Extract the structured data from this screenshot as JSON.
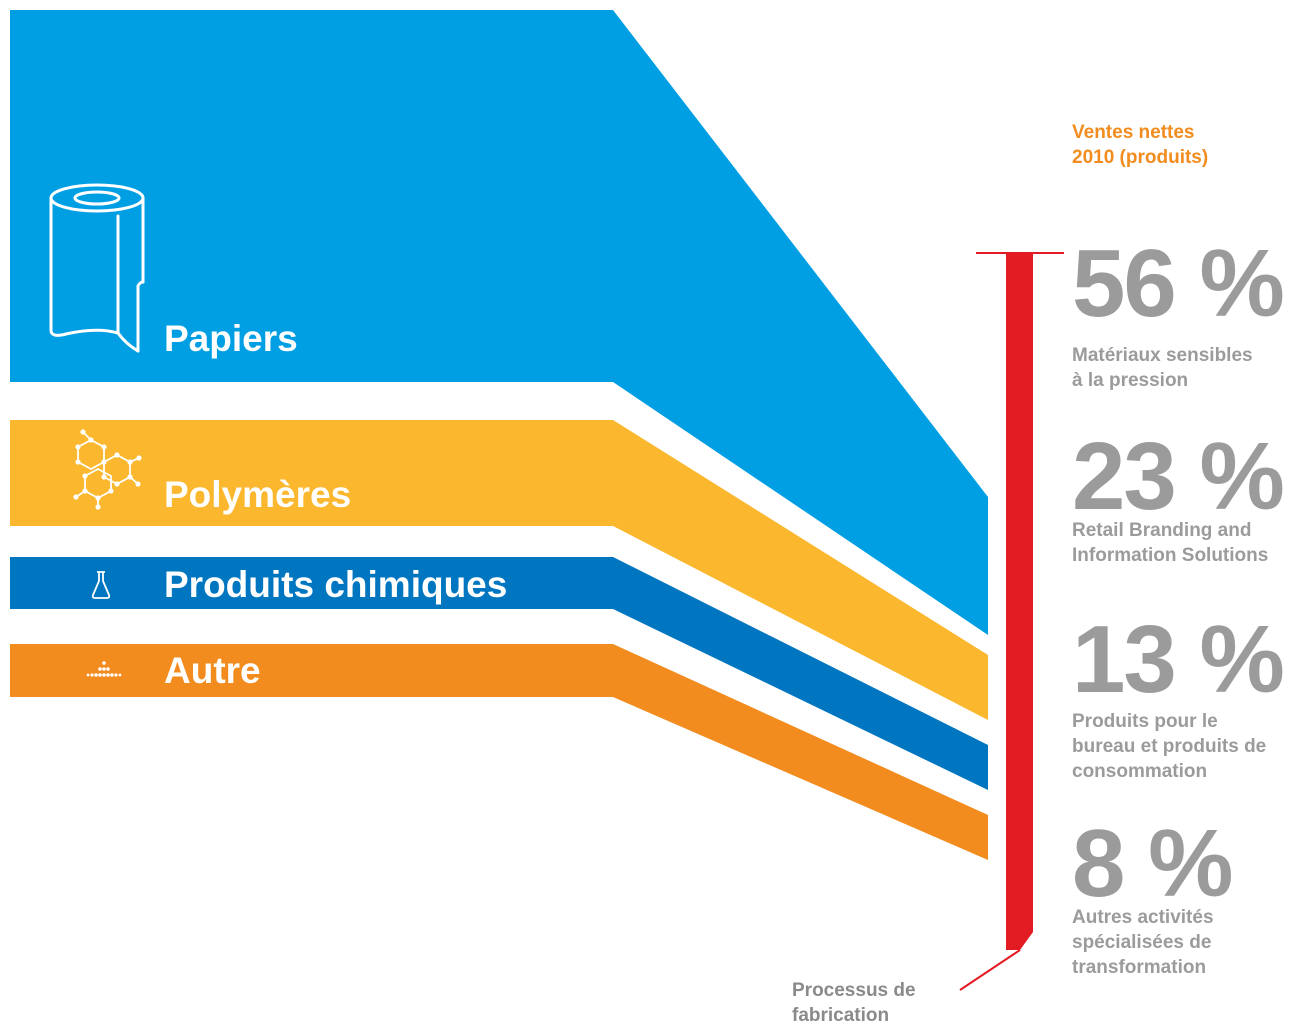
{
  "colors": {
    "papiers": "#009fe3",
    "polymeres": "#fbb72e",
    "chimiques": "#0076c0",
    "autre": "#f28c1e",
    "process_bar": "#e31b23",
    "heading": "#f28c1e",
    "stat_text": "#9b9b9b"
  },
  "inputs": [
    {
      "label": "Papiers",
      "icon": "paper-roll-icon"
    },
    {
      "label": "Polymères",
      "icon": "molecule-icon"
    },
    {
      "label": "Produits chimiques",
      "icon": "flask-icon"
    },
    {
      "label": "Autre",
      "icon": "dots-icon"
    }
  ],
  "process_label": "Processus de\nfabrication",
  "sales_heading": "Ventes nettes\n2010 (produits)",
  "outputs": [
    {
      "percent": "56 %",
      "label": "Matériaux sensibles\nà la pression"
    },
    {
      "percent": "23 %",
      "label": "Retail Branding and\nInformation Solutions"
    },
    {
      "percent": "13 %",
      "label": "Produits pour le\nbureau et produits de\nconsommation"
    },
    {
      "percent": "8 %",
      "label": "Autres activités\nspécialisées de\ntransformation"
    }
  ]
}
